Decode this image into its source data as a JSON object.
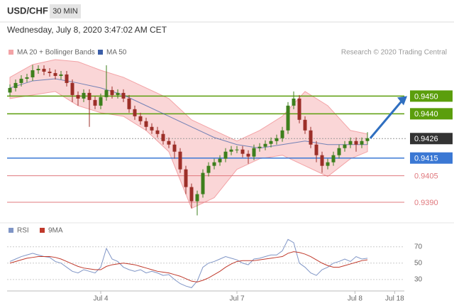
{
  "header": {
    "symbol": "USD/CHF",
    "interval": "30 MIN",
    "timestamp": "Wednesday, July 8, 2020 3:47:02 AM CET"
  },
  "chart_data": [
    {
      "type": "candlestick",
      "source": "Research © 2020 Trading Central",
      "up_color": "#3d7f1c",
      "down_color": "#9c2f28",
      "xlim": [
        -0.5,
        69.5
      ],
      "ylim": [
        0.9382,
        0.9469
      ],
      "open": [
        0.9452,
        0.94546,
        0.94574,
        0.94598,
        0.94606,
        0.94646,
        0.94654,
        0.94638,
        0.9463,
        0.94614,
        0.94622,
        0.94574,
        0.94506,
        0.94486,
        0.94518,
        0.94478,
        0.94446,
        0.94494,
        0.94534,
        0.94506,
        0.94518,
        0.94486,
        0.94426,
        0.94386,
        0.94358,
        0.94326,
        0.94306,
        0.94286,
        0.94246,
        0.94226,
        0.94186,
        0.94086,
        0.93986,
        0.93906,
        0.93946,
        0.94066,
        0.94106,
        0.94126,
        0.94146,
        0.94186,
        0.94198,
        0.94198,
        0.94174,
        0.94158,
        0.94206,
        0.94214,
        0.9423,
        0.94246,
        0.94262,
        0.94306,
        0.94446,
        0.94486,
        0.94366,
        0.94306,
        0.94226,
        0.94166,
        0.94106,
        0.94126,
        0.94166,
        0.94206,
        0.94226,
        0.94246,
        0.94226,
        0.94246
      ],
      "high": [
        0.94566,
        0.94594,
        0.94618,
        0.94626,
        0.94676,
        0.94674,
        0.94674,
        0.94658,
        0.9465,
        0.94642,
        0.94642,
        0.94594,
        0.94526,
        0.94538,
        0.94538,
        0.94498,
        0.94514,
        0.94674,
        0.94554,
        0.94538,
        0.94538,
        0.94506,
        0.94446,
        0.94406,
        0.94378,
        0.94346,
        0.94326,
        0.94306,
        0.94266,
        0.94246,
        0.94206,
        0.94106,
        0.94006,
        0.93966,
        0.94086,
        0.94126,
        0.94146,
        0.94166,
        0.94206,
        0.94218,
        0.94218,
        0.94218,
        0.94194,
        0.94226,
        0.94234,
        0.9425,
        0.94266,
        0.94282,
        0.94326,
        0.94466,
        0.94526,
        0.94506,
        0.94386,
        0.94326,
        0.94246,
        0.94186,
        0.94146,
        0.94186,
        0.94226,
        0.94246,
        0.94266,
        0.94266,
        0.94266,
        0.94296
      ],
      "low": [
        0.945,
        0.94526,
        0.94554,
        0.94578,
        0.94586,
        0.94626,
        0.94618,
        0.9461,
        0.94594,
        0.94594,
        0.94554,
        0.94466,
        0.94446,
        0.94466,
        0.94326,
        0.94426,
        0.94426,
        0.94474,
        0.94486,
        0.94486,
        0.94466,
        0.94406,
        0.94366,
        0.94338,
        0.94306,
        0.94286,
        0.94266,
        0.94226,
        0.94206,
        0.94146,
        0.94066,
        0.93946,
        0.93866,
        0.93826,
        0.93926,
        0.94046,
        0.94086,
        0.94106,
        0.94126,
        0.94166,
        0.94178,
        0.94154,
        0.94118,
        0.94138,
        0.94186,
        0.94194,
        0.9421,
        0.94226,
        0.94242,
        0.94286,
        0.94426,
        0.94346,
        0.94286,
        0.94206,
        0.94126,
        0.94066,
        0.94086,
        0.94106,
        0.94146,
        0.94186,
        0.94206,
        0.94186,
        0.94206,
        0.94226
      ],
      "close": [
        0.94546,
        0.94574,
        0.94598,
        0.94606,
        0.94646,
        0.94654,
        0.94638,
        0.9463,
        0.94614,
        0.94622,
        0.94574,
        0.94506,
        0.94486,
        0.94518,
        0.94478,
        0.94446,
        0.94494,
        0.94534,
        0.94506,
        0.94518,
        0.94486,
        0.94426,
        0.94386,
        0.94358,
        0.94326,
        0.94306,
        0.94286,
        0.94246,
        0.94226,
        0.94186,
        0.94086,
        0.93986,
        0.93906,
        0.93946,
        0.94066,
        0.94106,
        0.94126,
        0.94146,
        0.94186,
        0.94198,
        0.94198,
        0.94174,
        0.94158,
        0.94206,
        0.94214,
        0.9423,
        0.94246,
        0.94262,
        0.94306,
        0.94446,
        0.94486,
        0.94366,
        0.94306,
        0.94226,
        0.94166,
        0.94106,
        0.94126,
        0.94166,
        0.94206,
        0.94226,
        0.94246,
        0.94226,
        0.94246,
        0.94262
      ],
      "overlays": [
        {
          "name": "MA 20 + Bollinger Bands",
          "color": "#f3a3a6",
          "x": [
            0,
            4,
            8,
            12,
            16,
            20,
            24,
            28,
            32,
            36,
            40,
            44,
            48,
            52,
            56,
            60,
            63
          ],
          "upper": [
            0.94606,
            0.94678,
            0.94706,
            0.94694,
            0.94646,
            0.94606,
            0.94546,
            0.94486,
            0.94366,
            0.94306,
            0.94246,
            0.94306,
            0.94386,
            0.94526,
            0.94446,
            0.94306,
            0.94286
          ],
          "lower": [
            0.94486,
            0.94506,
            0.94526,
            0.94446,
            0.94406,
            0.94386,
            0.94306,
            0.94186,
            0.93866,
            0.93926,
            0.94086,
            0.94146,
            0.94166,
            0.94106,
            0.94046,
            0.94146,
            0.94186
          ]
        },
        {
          "name": "MA 50",
          "color": "#3b5ea8",
          "x": [
            0,
            4,
            8,
            12,
            16,
            20,
            24,
            28,
            32,
            36,
            40,
            44,
            48,
            52,
            56,
            60,
            63
          ],
          "values": [
            0.94546,
            0.94586,
            0.94598,
            0.94574,
            0.94546,
            0.94506,
            0.94446,
            0.94386,
            0.94326,
            0.94266,
            0.94226,
            0.94206,
            0.94226,
            0.94246,
            0.94226,
            0.94226,
            0.94226
          ]
        }
      ],
      "levels": [
        {
          "value": 0.945,
          "label": "0.9450",
          "color": "#5b9e0c",
          "boxed": true
        },
        {
          "value": 0.944,
          "label": "0.9440",
          "color": "#5b9e0c",
          "boxed": true
        },
        {
          "value": 0.9426,
          "color": "#333333",
          "boxed": true,
          "dotted": true
        },
        {
          "value": 0.9415,
          "color": "#3b78d4",
          "boxed": true
        },
        {
          "value": 0.9405,
          "color": "#e0787d",
          "boxed": false
        },
        {
          "value": 0.939,
          "label": "0.9390",
          "color": "#e0787d",
          "boxed": false
        }
      ]
    },
    {
      "type": "line",
      "xlim": [
        -0.5,
        69.5
      ],
      "ylim": [
        16,
        81
      ],
      "yticks": [
        30,
        50,
        70
      ],
      "grid": true,
      "xticks": [
        {
          "value": 16,
          "label": "Jul 4"
        },
        {
          "value": 40,
          "label": "Jul 7"
        },
        {
          "value": 60.8,
          "label": "Jul 8"
        },
        {
          "value": 67.8,
          "label": "Jul 18"
        }
      ],
      "series": [
        {
          "name": "RSI",
          "color": "#7f95c6",
          "values": [
            52,
            55,
            58,
            60,
            62,
            60,
            58,
            57,
            52,
            50,
            45,
            40,
            38,
            42,
            40,
            38,
            45,
            68,
            55,
            52,
            45,
            42,
            40,
            42,
            38,
            40,
            38,
            35,
            36,
            30,
            25,
            22,
            20,
            28,
            45,
            50,
            52,
            55,
            58,
            56,
            54,
            50,
            48,
            55,
            56,
            58,
            60,
            60,
            65,
            79,
            75,
            50,
            45,
            38,
            35,
            42,
            45,
            50,
            52,
            55,
            52,
            58,
            55,
            56
          ]
        },
        {
          "name": "9MA",
          "color": "#c0392b",
          "values": [
            50,
            52,
            54,
            56,
            57,
            58,
            58,
            58,
            57,
            55,
            52,
            49,
            46,
            44,
            43,
            42,
            42,
            46,
            48,
            49,
            50,
            49,
            48,
            46,
            44,
            42,
            40,
            39,
            38,
            36,
            34,
            31,
            28,
            27,
            29,
            32,
            36,
            40,
            45,
            49,
            52,
            53,
            53,
            53,
            54,
            55,
            56,
            57,
            58,
            62,
            64,
            63,
            61,
            58,
            54,
            50,
            47,
            45,
            45,
            47,
            49,
            51,
            53,
            54
          ]
        }
      ]
    }
  ]
}
